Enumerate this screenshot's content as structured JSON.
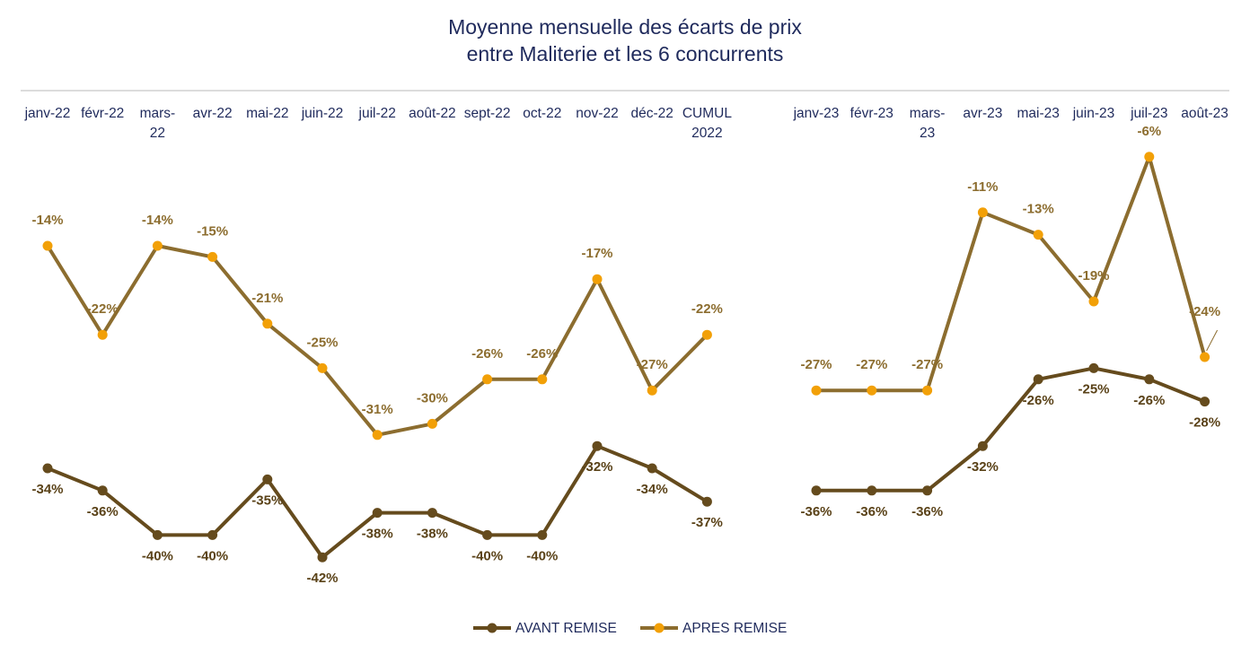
{
  "title_line1": "Moyenne mensuelle des écarts de prix",
  "title_line2": "entre Maliterie et les 6 concurrents",
  "colors": {
    "title": "#1f2a5c",
    "avant_line": "#654b1d",
    "avant_marker": "#654b1d",
    "apres_line": "#8c6d2f",
    "apres_marker": "#f2a007",
    "avant_label": "#5a4218",
    "apres_label": "#8c6d2f",
    "separator": "#d0d0d0"
  },
  "legend": [
    {
      "label": "AVANT REMISE"
    },
    {
      "label": "APRES REMISE"
    }
  ],
  "chart_data": {
    "type": "line",
    "panels": [
      {
        "categories": [
          [
            "janv-22"
          ],
          [
            "févr-22"
          ],
          [
            "mars-",
            "22"
          ],
          [
            "avr-22"
          ],
          [
            "mai-22"
          ],
          [
            "juin-22"
          ],
          [
            "juil-22"
          ],
          [
            "août-22"
          ],
          [
            "sept-22"
          ],
          [
            "oct-22"
          ],
          [
            "nov-22"
          ],
          [
            "déc-22"
          ],
          [
            "CUMUL",
            "2022"
          ]
        ],
        "series": [
          {
            "name": "AVANT REMISE",
            "values": [
              -34,
              -36,
              -40,
              -40,
              -35,
              -42,
              -38,
              -38,
              -40,
              -40,
              -32,
              -34,
              -37
            ],
            "labels": [
              "-34%",
              "-36%",
              "-40%",
              "-40%",
              "-35%",
              "-42%",
              "-38%",
              "-38%",
              "-40%",
              "-40%",
              "-32%",
              "-34%",
              "-37%"
            ]
          },
          {
            "name": "APRES REMISE",
            "values": [
              -14,
              -22,
              -14,
              -15,
              -21,
              -25,
              -31,
              -30,
              -26,
              -26,
              -17,
              -27,
              -22
            ],
            "labels": [
              "-14%",
              "-22%",
              "-14%",
              "-15%",
              "-21%",
              "-25%",
              "-31%",
              "-30%",
              "-26%",
              "-26%",
              "-17%",
              "-27%",
              "-22%"
            ]
          }
        ]
      },
      {
        "categories": [
          [
            "janv-23"
          ],
          [
            "févr-23"
          ],
          [
            "mars-",
            "23"
          ],
          [
            "avr-23"
          ],
          [
            "mai-23"
          ],
          [
            "juin-23"
          ],
          [
            "juil-23"
          ],
          [
            "août-23"
          ]
        ],
        "series": [
          {
            "name": "AVANT REMISE",
            "values": [
              -36,
              -36,
              -36,
              -32,
              -26,
              -25,
              -26,
              -28
            ],
            "labels": [
              "-36%",
              "-36%",
              "-36%",
              "-32%",
              "-26%",
              "-25%",
              "-26%",
              "-28%"
            ]
          },
          {
            "name": "APRES REMISE",
            "values": [
              -27,
              -27,
              -27,
              -11,
              -13,
              -19,
              -6,
              -24
            ],
            "labels": [
              "-27%",
              "-27%",
              "-27%",
              "-11%",
              "-13%",
              "-19%",
              "-6%",
              "-24%"
            ]
          }
        ]
      }
    ],
    "ylim": [
      -45,
      -5
    ],
    "grid": false,
    "legend_position": "bottom-center"
  }
}
